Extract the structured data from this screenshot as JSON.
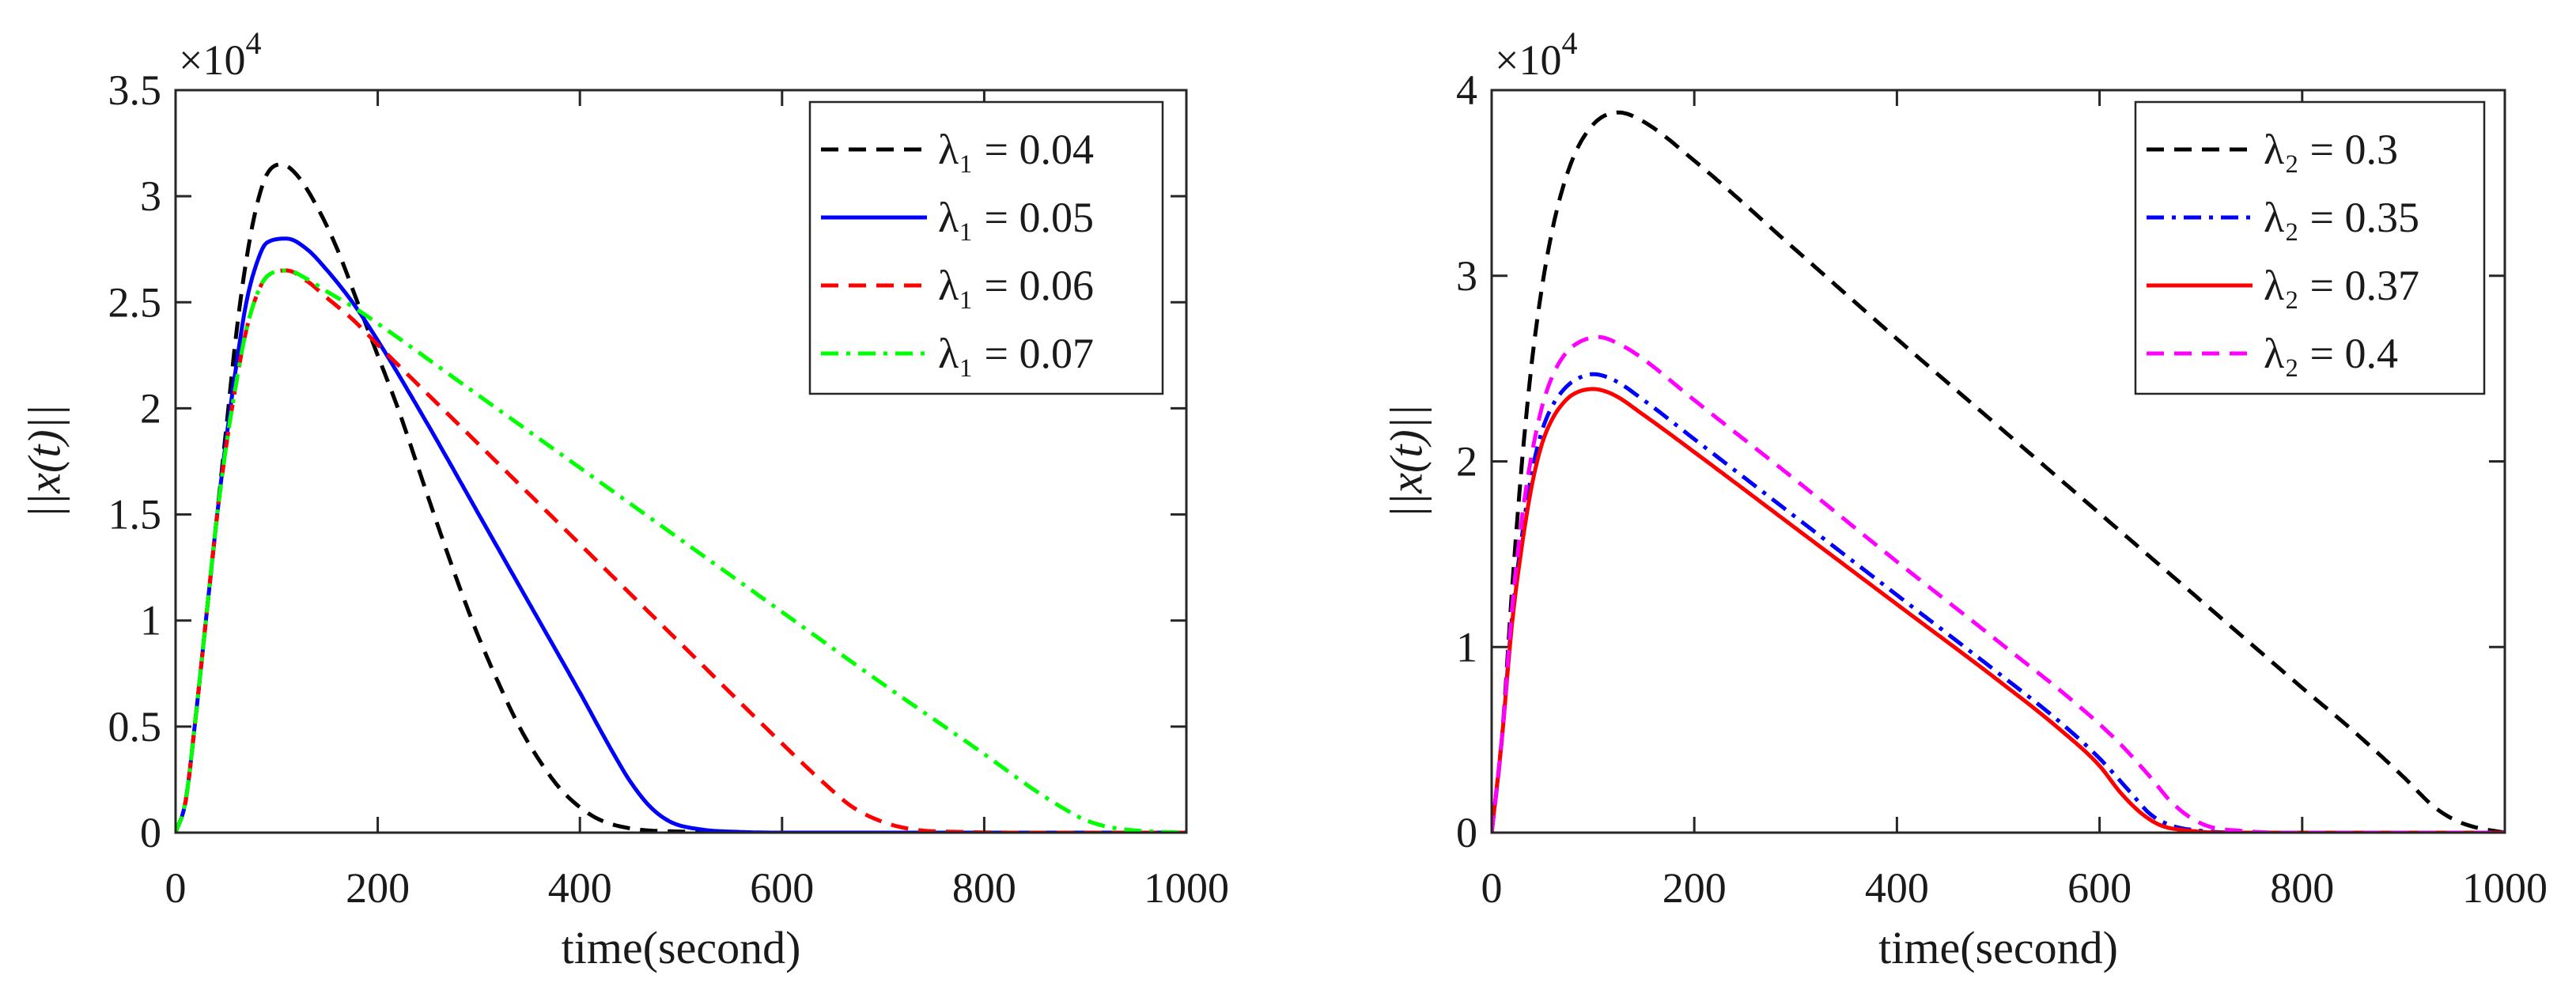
{
  "chart_data": [
    {
      "type": "line",
      "xlabel": "time(second)",
      "ylabel": "||x(t)||",
      "y_multiplier": {
        "base": "×10",
        "exponent": "4"
      },
      "xlim": [
        0,
        1000
      ],
      "ylim": [
        0,
        3.5
      ],
      "x_ticks": [
        "0",
        "200",
        "400",
        "600",
        "800",
        "1000"
      ],
      "y_ticks": [
        "0",
        "0.5",
        "1",
        "1.5",
        "2",
        "2.5",
        "3",
        "3.5"
      ],
      "grid": false,
      "legend": "top-right",
      "series": [
        {
          "name": "λ₁ = 0.04",
          "color": "#000000",
          "line_style": "dashed",
          "x": [
            0,
            10,
            20,
            30,
            40,
            50,
            60,
            70,
            80,
            90,
            105,
            120,
            140,
            160,
            180,
            200,
            220,
            240,
            260,
            280,
            300,
            320,
            340,
            360,
            380,
            400,
            420,
            450,
            500,
            600,
            1000
          ],
          "y": [
            0,
            0.15,
            0.55,
            1.0,
            1.45,
            1.9,
            2.35,
            2.7,
            2.95,
            3.1,
            3.15,
            3.1,
            2.95,
            2.75,
            2.5,
            2.25,
            2.0,
            1.72,
            1.44,
            1.17,
            0.92,
            0.7,
            0.5,
            0.34,
            0.21,
            0.12,
            0.06,
            0.02,
            0.005,
            0,
            0
          ]
        },
        {
          "name": "λ₁ = 0.05",
          "color": "#0000ff",
          "line_style": "solid",
          "x": [
            0,
            10,
            20,
            30,
            40,
            50,
            60,
            70,
            80,
            90,
            110,
            130,
            150,
            175,
            200,
            250,
            300,
            350,
            400,
            430,
            450,
            470,
            490,
            520,
            560,
            600,
            1000
          ],
          "y": [
            0,
            0.15,
            0.55,
            1.0,
            1.45,
            1.85,
            2.2,
            2.5,
            2.68,
            2.78,
            2.8,
            2.75,
            2.65,
            2.5,
            2.32,
            1.92,
            1.5,
            1.08,
            0.66,
            0.4,
            0.24,
            0.12,
            0.05,
            0.015,
            0.003,
            0,
            0
          ]
        },
        {
          "name": "λ₁ = 0.06",
          "color": "#ff0000",
          "line_style": "dashed",
          "x": [
            0,
            10,
            20,
            30,
            40,
            50,
            60,
            70,
            80,
            90,
            110,
            130,
            150,
            175,
            200,
            300,
            400,
            500,
            600,
            640,
            670,
            700,
            730,
            780,
            850,
            1000
          ],
          "y": [
            0,
            0.15,
            0.55,
            1.0,
            1.45,
            1.82,
            2.12,
            2.37,
            2.53,
            2.62,
            2.65,
            2.6,
            2.52,
            2.42,
            2.3,
            1.83,
            1.36,
            0.89,
            0.42,
            0.24,
            0.12,
            0.05,
            0.015,
            0.003,
            0,
            0
          ]
        },
        {
          "name": "λ₁ = 0.07",
          "color": "#00ff00",
          "line_style": "dashdot",
          "x": [
            0,
            10,
            20,
            30,
            40,
            50,
            60,
            70,
            80,
            90,
            110,
            130,
            150,
            175,
            200,
            300,
            400,
            500,
            600,
            700,
            800,
            850,
            880,
            900,
            920,
            950,
            1000
          ],
          "y": [
            0,
            0.15,
            0.55,
            1.0,
            1.45,
            1.82,
            2.12,
            2.37,
            2.53,
            2.62,
            2.65,
            2.61,
            2.55,
            2.48,
            2.4,
            2.06,
            1.72,
            1.38,
            1.04,
            0.7,
            0.37,
            0.2,
            0.11,
            0.06,
            0.03,
            0.01,
            0
          ]
        }
      ]
    },
    {
      "type": "line",
      "xlabel": "time(second)",
      "ylabel": "||x(t)||",
      "y_multiplier": {
        "base": "×10",
        "exponent": "4"
      },
      "xlim": [
        0,
        1000
      ],
      "ylim": [
        0,
        4
      ],
      "x_ticks": [
        "0",
        "200",
        "400",
        "600",
        "800",
        "1000"
      ],
      "y_ticks": [
        "0",
        "1",
        "2",
        "3",
        "4"
      ],
      "grid": false,
      "legend": "top-right",
      "series": [
        {
          "name": "λ₂ = 0.3",
          "color": "#000000",
          "line_style": "dashed",
          "x": [
            0,
            10,
            20,
            30,
            40,
            50,
            60,
            70,
            80,
            90,
            105,
            125,
            150,
            200,
            300,
            400,
            500,
            600,
            700,
            800,
            850,
            900,
            930,
            950,
            970,
            1000
          ],
          "y": [
            0,
            0.5,
            1.3,
            2.0,
            2.55,
            2.95,
            3.25,
            3.47,
            3.63,
            3.74,
            3.84,
            3.88,
            3.83,
            3.62,
            3.14,
            2.66,
            2.19,
            1.72,
            1.25,
            0.78,
            0.55,
            0.3,
            0.14,
            0.07,
            0.03,
            0
          ]
        },
        {
          "name": "λ₂ = 0.35",
          "color": "#0000ff",
          "line_style": "dashdot",
          "x": [
            0,
            10,
            20,
            30,
            40,
            50,
            60,
            70,
            80,
            100,
            120,
            150,
            200,
            300,
            400,
            500,
            560,
            600,
            630,
            650,
            670,
            700,
            750,
            1000
          ],
          "y": [
            0,
            0.5,
            1.15,
            1.6,
            1.95,
            2.17,
            2.3,
            2.38,
            2.43,
            2.47,
            2.44,
            2.33,
            2.12,
            1.7,
            1.28,
            0.86,
            0.6,
            0.4,
            0.22,
            0.1,
            0.04,
            0.01,
            0,
            0
          ]
        },
        {
          "name": "λ₂ = 0.37",
          "color": "#ff0000",
          "line_style": "solid",
          "x": [
            0,
            10,
            20,
            30,
            40,
            50,
            60,
            70,
            80,
            100,
            120,
            150,
            200,
            300,
            400,
            500,
            560,
            600,
            620,
            640,
            660,
            690,
            720,
            1000
          ],
          "y": [
            0,
            0.5,
            1.12,
            1.55,
            1.88,
            2.1,
            2.23,
            2.31,
            2.36,
            2.39,
            2.36,
            2.25,
            2.05,
            1.64,
            1.23,
            0.82,
            0.56,
            0.36,
            0.22,
            0.11,
            0.04,
            0.01,
            0,
            0
          ]
        },
        {
          "name": "λ₂ = 0.4",
          "color": "#ff00ff",
          "line_style": "dashed",
          "x": [
            0,
            10,
            20,
            30,
            40,
            50,
            60,
            70,
            80,
            105,
            130,
            150,
            200,
            300,
            400,
            500,
            580,
            620,
            650,
            670,
            690,
            710,
            740,
            780,
            1000
          ],
          "y": [
            0,
            0.5,
            1.2,
            1.7,
            2.05,
            2.3,
            2.46,
            2.56,
            2.62,
            2.67,
            2.62,
            2.55,
            2.33,
            1.9,
            1.46,
            1.03,
            0.68,
            0.48,
            0.3,
            0.17,
            0.08,
            0.03,
            0.01,
            0,
            0
          ]
        }
      ]
    }
  ]
}
